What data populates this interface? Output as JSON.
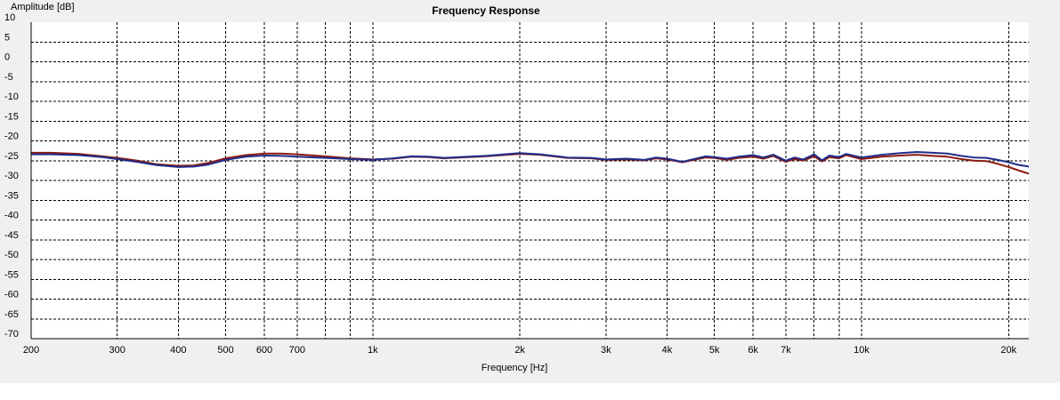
{
  "chart_data": {
    "type": "line",
    "title": "Frequency Response",
    "xlabel": "Frequency [Hz]",
    "ylabel": "Amplitude [dB]",
    "x_scale": "log",
    "xlim": [
      200,
      22000
    ],
    "ylim": [
      -70,
      10
    ],
    "y_ticks": [
      10,
      5,
      0,
      -5,
      -10,
      -15,
      -20,
      -25,
      -30,
      -35,
      -40,
      -45,
      -50,
      -55,
      -60,
      -65,
      -70
    ],
    "x_tick_labels": [
      {
        "value": 200,
        "label": "200"
      },
      {
        "value": 300,
        "label": "300"
      },
      {
        "value": 400,
        "label": "400"
      },
      {
        "value": 500,
        "label": "500"
      },
      {
        "value": 600,
        "label": "600"
      },
      {
        "value": 700,
        "label": "700"
      },
      {
        "value": 1000,
        "label": "1k"
      },
      {
        "value": 2000,
        "label": "2k"
      },
      {
        "value": 3000,
        "label": "3k"
      },
      {
        "value": 4000,
        "label": "4k"
      },
      {
        "value": 5000,
        "label": "5k"
      },
      {
        "value": 6000,
        "label": "6k"
      },
      {
        "value": 7000,
        "label": "7k"
      },
      {
        "value": 10000,
        "label": "10k"
      },
      {
        "value": 20000,
        "label": "20k"
      }
    ],
    "x_grid": [
      200,
      300,
      400,
      500,
      600,
      700,
      800,
      900,
      1000,
      2000,
      3000,
      4000,
      5000,
      6000,
      7000,
      8000,
      9000,
      10000,
      20000
    ],
    "grid": true,
    "legend": "none",
    "series": [
      {
        "color": "#8b1a10",
        "points": [
          [
            200,
            -23.0
          ],
          [
            220,
            -23.0
          ],
          [
            250,
            -23.3
          ],
          [
            280,
            -23.9
          ],
          [
            300,
            -24.3
          ],
          [
            330,
            -25.0
          ],
          [
            360,
            -25.9
          ],
          [
            400,
            -26.3
          ],
          [
            430,
            -26.2
          ],
          [
            460,
            -25.6
          ],
          [
            500,
            -24.4
          ],
          [
            550,
            -23.6
          ],
          [
            600,
            -23.2
          ],
          [
            650,
            -23.2
          ],
          [
            700,
            -23.4
          ],
          [
            800,
            -23.9
          ],
          [
            900,
            -24.4
          ],
          [
            1000,
            -24.7
          ],
          [
            1100,
            -24.5
          ],
          [
            1200,
            -24.0
          ],
          [
            1300,
            -24.1
          ],
          [
            1400,
            -24.4
          ],
          [
            1500,
            -24.2
          ],
          [
            1700,
            -23.9
          ],
          [
            2000,
            -23.3
          ],
          [
            2200,
            -23.5
          ],
          [
            2500,
            -24.3
          ],
          [
            2800,
            -24.4
          ],
          [
            3000,
            -24.8
          ],
          [
            3300,
            -24.7
          ],
          [
            3600,
            -24.9
          ],
          [
            3800,
            -24.4
          ],
          [
            4000,
            -24.7
          ],
          [
            4300,
            -25.4
          ],
          [
            4500,
            -24.9
          ],
          [
            4800,
            -24.2
          ],
          [
            5000,
            -24.3
          ],
          [
            5300,
            -24.8
          ],
          [
            5600,
            -24.3
          ],
          [
            6000,
            -24.0
          ],
          [
            6300,
            -24.5
          ],
          [
            6600,
            -23.8
          ],
          [
            7000,
            -25.3
          ],
          [
            7300,
            -24.6
          ],
          [
            7600,
            -25.0
          ],
          [
            8000,
            -23.9
          ],
          [
            8300,
            -25.2
          ],
          [
            8600,
            -24.1
          ],
          [
            9000,
            -24.4
          ],
          [
            9300,
            -23.6
          ],
          [
            10000,
            -24.6
          ],
          [
            11000,
            -24.0
          ],
          [
            12000,
            -23.7
          ],
          [
            13000,
            -23.5
          ],
          [
            14000,
            -23.8
          ],
          [
            15000,
            -24.0
          ],
          [
            16000,
            -24.6
          ],
          [
            17000,
            -25.0
          ],
          [
            18000,
            -25.1
          ],
          [
            19000,
            -25.8
          ],
          [
            20000,
            -26.6
          ],
          [
            21000,
            -27.5
          ],
          [
            22000,
            -28.3
          ]
        ]
      },
      {
        "color": "#1f2d8a",
        "points": [
          [
            200,
            -23.4
          ],
          [
            220,
            -23.4
          ],
          [
            250,
            -23.6
          ],
          [
            280,
            -24.1
          ],
          [
            300,
            -24.6
          ],
          [
            330,
            -25.3
          ],
          [
            360,
            -26.1
          ],
          [
            400,
            -26.6
          ],
          [
            430,
            -26.5
          ],
          [
            460,
            -26.0
          ],
          [
            500,
            -24.8
          ],
          [
            550,
            -24.0
          ],
          [
            600,
            -23.7
          ],
          [
            650,
            -23.8
          ],
          [
            700,
            -24.0
          ],
          [
            800,
            -24.3
          ],
          [
            900,
            -24.6
          ],
          [
            1000,
            -24.8
          ],
          [
            1100,
            -24.4
          ],
          [
            1200,
            -23.9
          ],
          [
            1300,
            -24.0
          ],
          [
            1400,
            -24.3
          ],
          [
            1500,
            -24.1
          ],
          [
            1700,
            -23.8
          ],
          [
            2000,
            -23.1
          ],
          [
            2200,
            -23.4
          ],
          [
            2500,
            -24.2
          ],
          [
            2800,
            -24.3
          ],
          [
            3000,
            -24.7
          ],
          [
            3300,
            -24.5
          ],
          [
            3600,
            -24.8
          ],
          [
            3800,
            -24.2
          ],
          [
            4000,
            -24.5
          ],
          [
            4300,
            -25.3
          ],
          [
            4500,
            -24.7
          ],
          [
            4800,
            -23.9
          ],
          [
            5000,
            -24.1
          ],
          [
            5300,
            -24.5
          ],
          [
            5600,
            -24.0
          ],
          [
            6000,
            -23.6
          ],
          [
            6300,
            -24.2
          ],
          [
            6600,
            -23.5
          ],
          [
            7000,
            -25.0
          ],
          [
            7300,
            -24.2
          ],
          [
            7600,
            -24.7
          ],
          [
            8000,
            -23.4
          ],
          [
            8300,
            -24.9
          ],
          [
            8600,
            -23.7
          ],
          [
            9000,
            -24.1
          ],
          [
            9300,
            -23.3
          ],
          [
            10000,
            -24.2
          ],
          [
            11000,
            -23.5
          ],
          [
            12000,
            -23.1
          ],
          [
            13000,
            -22.8
          ],
          [
            14000,
            -23.0
          ],
          [
            15000,
            -23.2
          ],
          [
            16000,
            -23.8
          ],
          [
            17000,
            -24.2
          ],
          [
            18000,
            -24.3
          ],
          [
            19000,
            -24.8
          ],
          [
            20000,
            -25.4
          ],
          [
            21000,
            -26.1
          ],
          [
            22000,
            -26.5
          ]
        ]
      }
    ]
  }
}
